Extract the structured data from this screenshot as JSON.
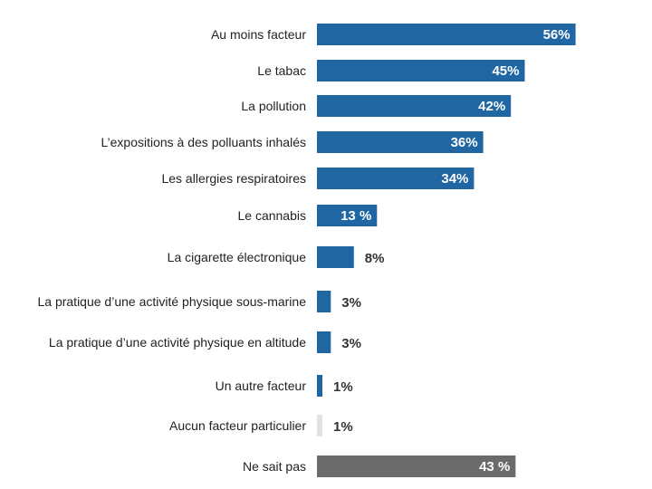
{
  "chart_data": {
    "type": "bar",
    "orientation": "horizontal",
    "grid": false,
    "legend": "none",
    "categories": [
      "Au moins facteur",
      "Le tabac",
      "La pollution",
      "L’expositions à des polluants inhalés",
      "Les allergies respiratoires",
      "Le cannabis",
      "La cigarette électronique",
      "La pratique d’une activité physique sous-marine",
      "La pratique d’une activité physique en altitude",
      "Un autre facteur",
      "Aucun facteur particulier",
      "Ne sait pas"
    ],
    "values": [
      56,
      45,
      42,
      36,
      34,
      13,
      8,
      3,
      3,
      1,
      1,
      43
    ],
    "value_labels": [
      "56%",
      "45%",
      "42%",
      "36%",
      "34%",
      "13 %",
      "8%",
      "3%",
      "3%",
      "1%",
      "1%",
      "43 %"
    ],
    "bar_colors": [
      "#1f66a3",
      "#1f66a3",
      "#1f66a3",
      "#1f66a3",
      "#1f66a3",
      "#1f66a3",
      "#1f66a3",
      "#1f66a3",
      "#1f66a3",
      "#1f66a3",
      "#e2e2de",
      "#6b6b6b"
    ],
    "xlim": [
      0,
      60
    ]
  }
}
